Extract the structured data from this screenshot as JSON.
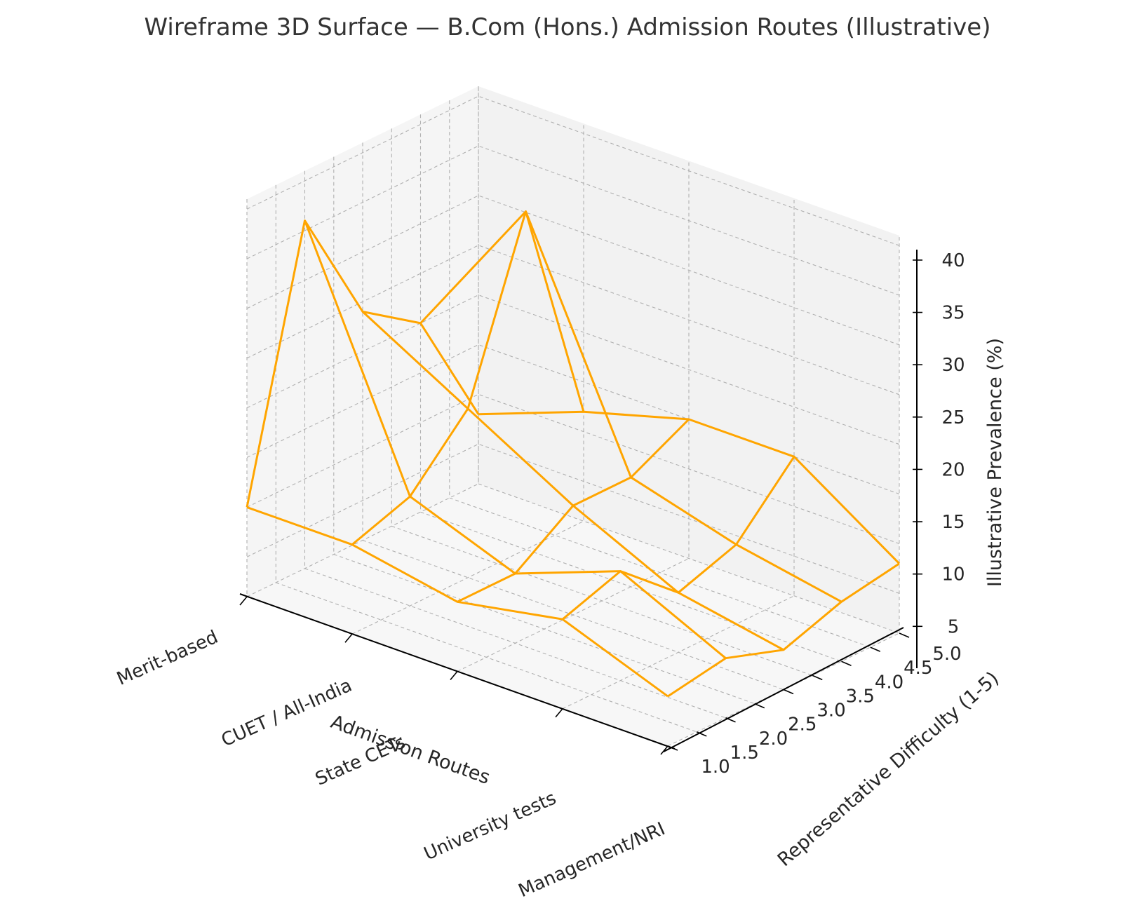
{
  "chart_data": {
    "type": "surface",
    "style": "wireframe",
    "title": "Wireframe 3D Surface — B.Com (Hons.) Admission Routes (Illustrative)",
    "xlabel": "Admission Routes",
    "ylabel": "Representative Difficulty (1-5)",
    "zlabel": "Illustrative Prevalence (%)",
    "x_categories": [
      "Merit-based",
      "CUET / All-India",
      "State CETs",
      "University tests",
      "Management/NRI"
    ],
    "y_values": [
      1.0,
      2.0,
      3.0,
      4.0,
      5.0
    ],
    "y_ticks": [
      "1.0",
      "1.5",
      "2.0",
      "2.5",
      "3.0",
      "3.5",
      "4.0",
      "4.5",
      "5.0"
    ],
    "z_ticks": [
      "5",
      "10",
      "15",
      "20",
      "25",
      "30",
      "35",
      "40"
    ],
    "zlim": [
      1,
      41
    ],
    "grid": true,
    "line_color": "#FFA500",
    "z_values": [
      [
        10,
        10,
        8,
        10,
        6
      ],
      [
        36,
        12,
        8,
        12,
        7
      ],
      [
        24,
        18,
        12,
        7,
        5
      ],
      [
        20,
        35,
        12,
        9,
        7
      ],
      [
        8,
        12,
        15,
        15,
        8
      ]
    ],
    "z_values_note_rows": "rows indexed by y_values (difficulty 1.0..5.0), columns by x_categories"
  }
}
